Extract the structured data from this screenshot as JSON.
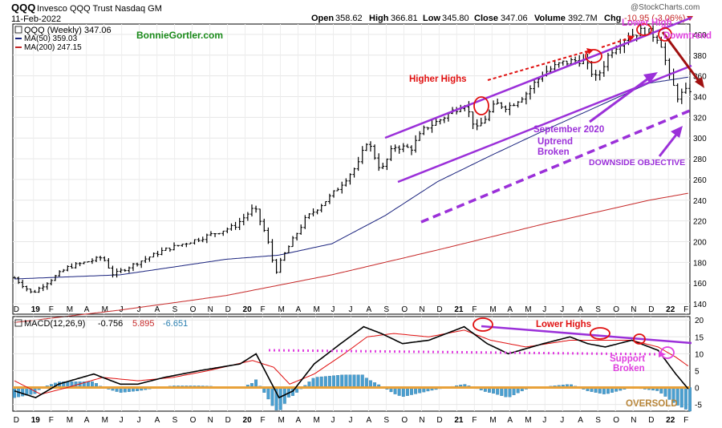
{
  "header": {
    "symbol": "QQQ",
    "name": "Invesco QQQ Trust Nasdaq GM",
    "date": "11-Feb-2022",
    "open_label": "Open",
    "open": "358.62",
    "high_label": "High",
    "high": "366.81",
    "low_label": "Low",
    "low": "345.80",
    "close_label": "Close",
    "close": "347.06",
    "volume_label": "Volume",
    "volume": "392.7M",
    "chg_label": "Chg",
    "chg": "-10.95 (-3.06%)",
    "watermark": "@StockCharts.com"
  },
  "legend": {
    "main": "QQQ (Weekly) 347.06",
    "ma50": "MA(50) 359.03",
    "ma200": "MA(200) 247.15",
    "author": "BonnieGortler.com"
  },
  "colors": {
    "price": "#000000",
    "ma50": "#1a237e",
    "ma200": "#c62828",
    "channel": "#9b30d9",
    "red_annot": "#e01010",
    "macd_hist": "#4a9fd0",
    "orange": "#e8a13a",
    "magenta": "#e040e0",
    "dark_red": "#a01010"
  },
  "chart_data": [
    {
      "type": "ohlc",
      "title": "QQQ (Weekly)",
      "ylim": [
        130,
        410
      ],
      "y_ticks": [
        "140",
        "160",
        "180",
        "200",
        "220",
        "240",
        "260",
        "280",
        "300",
        "320",
        "340",
        "360",
        "380",
        "400"
      ],
      "x_tick_labels": [
        "D",
        "19",
        "F",
        "M",
        "A",
        "M",
        "J",
        "J",
        "A",
        "S",
        "O",
        "N",
        "D",
        "20",
        "F",
        "M",
        "A",
        "M",
        "J",
        "J",
        "A",
        "S",
        "O",
        "N",
        "D",
        "21",
        "F",
        "M",
        "A",
        "M",
        "J",
        "J",
        "A",
        "S",
        "O",
        "N",
        "D",
        "22",
        "F"
      ],
      "x_range_months": [
        "2018-12",
        "2022-02"
      ],
      "close_path_anchors": [
        {
          "t": 0.0,
          "v": 165
        },
        {
          "t": 1.0,
          "v": 150
        },
        {
          "t": 3.0,
          "v": 175
        },
        {
          "t": 5.0,
          "v": 185
        },
        {
          "t": 5.6,
          "v": 168
        },
        {
          "t": 7.0,
          "v": 180
        },
        {
          "t": 8.5,
          "v": 192
        },
        {
          "t": 10.5,
          "v": 203
        },
        {
          "t": 12.5,
          "v": 215
        },
        {
          "t": 13.6,
          "v": 233
        },
        {
          "t": 14.3,
          "v": 205
        },
        {
          "t": 14.8,
          "v": 170
        },
        {
          "t": 15.3,
          "v": 188
        },
        {
          "t": 16.5,
          "v": 222
        },
        {
          "t": 18.0,
          "v": 245
        },
        {
          "t": 19.5,
          "v": 275
        },
        {
          "t": 20.0,
          "v": 298
        },
        {
          "t": 20.8,
          "v": 268
        },
        {
          "t": 21.5,
          "v": 292
        },
        {
          "t": 22.5,
          "v": 290
        },
        {
          "t": 23.3,
          "v": 310
        },
        {
          "t": 24.0,
          "v": 316
        },
        {
          "t": 25.5,
          "v": 334
        },
        {
          "t": 26.2,
          "v": 308
        },
        {
          "t": 27.3,
          "v": 333
        },
        {
          "t": 28.0,
          "v": 330
        },
        {
          "t": 29.0,
          "v": 343
        },
        {
          "t": 30.0,
          "v": 363
        },
        {
          "t": 31.0,
          "v": 372
        },
        {
          "t": 32.2,
          "v": 376
        },
        {
          "t": 33.0,
          "v": 357
        },
        {
          "t": 33.8,
          "v": 384
        },
        {
          "t": 34.7,
          "v": 398
        },
        {
          "t": 35.7,
          "v": 404
        },
        {
          "t": 36.6,
          "v": 396
        },
        {
          "t": 37.1,
          "v": 361
        },
        {
          "t": 37.6,
          "v": 340
        },
        {
          "t": 38.3,
          "v": 347
        }
      ],
      "ma50_anchors": [
        {
          "t": 0.0,
          "v": 164
        },
        {
          "t": 6.0,
          "v": 168
        },
        {
          "t": 12.0,
          "v": 183
        },
        {
          "t": 15.0,
          "v": 187
        },
        {
          "t": 18.0,
          "v": 198
        },
        {
          "t": 21.0,
          "v": 225
        },
        {
          "t": 24.0,
          "v": 258
        },
        {
          "t": 27.0,
          "v": 283
        },
        {
          "t": 30.0,
          "v": 307
        },
        {
          "t": 33.0,
          "v": 330
        },
        {
          "t": 36.0,
          "v": 353
        },
        {
          "t": 38.3,
          "v": 359
        }
      ],
      "ma200_anchors": [
        {
          "t": 0.0,
          "v": 122
        },
        {
          "t": 3.0,
          "v": 128
        },
        {
          "t": 6.0,
          "v": 134
        },
        {
          "t": 12.0,
          "v": 148
        },
        {
          "t": 18.0,
          "v": 168
        },
        {
          "t": 24.0,
          "v": 192
        },
        {
          "t": 30.0,
          "v": 217
        },
        {
          "t": 36.0,
          "v": 240
        },
        {
          "t": 38.3,
          "v": 247
        }
      ],
      "annotations": [
        {
          "text": "Higher Highs",
          "color": "red"
        },
        {
          "text": "Lower High",
          "color": "magenta"
        },
        {
          "text": "Downtrend",
          "color": "magenta"
        },
        {
          "text": "September 2020",
          "color": "purple"
        },
        {
          "text": "Uptrend",
          "color": "purple"
        },
        {
          "text": "Broken",
          "color": "purple"
        },
        {
          "text": "DOWNSIDE OBJECTIVE",
          "color": "purple"
        }
      ]
    },
    {
      "type": "line+histogram",
      "title": "MACD(12,26,9)",
      "legend_values": {
        "macd": "-0.756",
        "signal": "5.895",
        "histogram": "-6.651"
      },
      "ylim": [
        -7,
        21
      ],
      "y_ticks": [
        "-5",
        "0",
        "5",
        "10",
        "15",
        "20"
      ],
      "macd_anchors": [
        {
          "t": 0.0,
          "v": -1
        },
        {
          "t": 1.2,
          "v": -3
        },
        {
          "t": 2.5,
          "v": 1
        },
        {
          "t": 4.5,
          "v": 4
        },
        {
          "t": 6.0,
          "v": 1
        },
        {
          "t": 7.0,
          "v": 1
        },
        {
          "t": 8.5,
          "v": 3
        },
        {
          "t": 10.5,
          "v": 5
        },
        {
          "t": 12.8,
          "v": 7
        },
        {
          "t": 13.7,
          "v": 10
        },
        {
          "t": 14.4,
          "v": 3
        },
        {
          "t": 15.0,
          "v": -3
        },
        {
          "t": 15.8,
          "v": -1
        },
        {
          "t": 17.0,
          "v": 7
        },
        {
          "t": 18.5,
          "v": 13
        },
        {
          "t": 19.8,
          "v": 18
        },
        {
          "t": 20.8,
          "v": 16
        },
        {
          "t": 22.0,
          "v": 13
        },
        {
          "t": 23.5,
          "v": 14
        },
        {
          "t": 25.5,
          "v": 18
        },
        {
          "t": 26.8,
          "v": 13
        },
        {
          "t": 28.0,
          "v": 10
        },
        {
          "t": 30.0,
          "v": 13
        },
        {
          "t": 31.5,
          "v": 15
        },
        {
          "t": 32.5,
          "v": 13
        },
        {
          "t": 33.5,
          "v": 12
        },
        {
          "t": 35.0,
          "v": 14
        },
        {
          "t": 36.5,
          "v": 11
        },
        {
          "t": 37.5,
          "v": 4
        },
        {
          "t": 38.3,
          "v": -1
        }
      ],
      "signal_anchors": [
        {
          "t": 0.0,
          "v": 2
        },
        {
          "t": 1.5,
          "v": -2
        },
        {
          "t": 3.0,
          "v": 0
        },
        {
          "t": 5.0,
          "v": 3
        },
        {
          "t": 7.0,
          "v": 2
        },
        {
          "t": 9.0,
          "v": 3
        },
        {
          "t": 11.0,
          "v": 5
        },
        {
          "t": 13.5,
          "v": 8
        },
        {
          "t": 14.7,
          "v": 6
        },
        {
          "t": 15.6,
          "v": 1
        },
        {
          "t": 17.0,
          "v": 4
        },
        {
          "t": 18.7,
          "v": 10
        },
        {
          "t": 20.0,
          "v": 15
        },
        {
          "t": 21.5,
          "v": 16
        },
        {
          "t": 23.5,
          "v": 15
        },
        {
          "t": 25.5,
          "v": 17
        },
        {
          "t": 27.0,
          "v": 14
        },
        {
          "t": 29.0,
          "v": 12
        },
        {
          "t": 31.5,
          "v": 14
        },
        {
          "t": 33.0,
          "v": 14
        },
        {
          "t": 35.0,
          "v": 14
        },
        {
          "t": 36.5,
          "v": 12
        },
        {
          "t": 37.5,
          "v": 9
        },
        {
          "t": 38.3,
          "v": 6
        }
      ],
      "annotations": [
        {
          "text": "Lower Highs",
          "color": "red"
        },
        {
          "text": "Support",
          "color": "magenta"
        },
        {
          "text": "Broken",
          "color": "magenta"
        },
        {
          "text": "OVERSOLD",
          "color": "orange"
        }
      ]
    }
  ]
}
